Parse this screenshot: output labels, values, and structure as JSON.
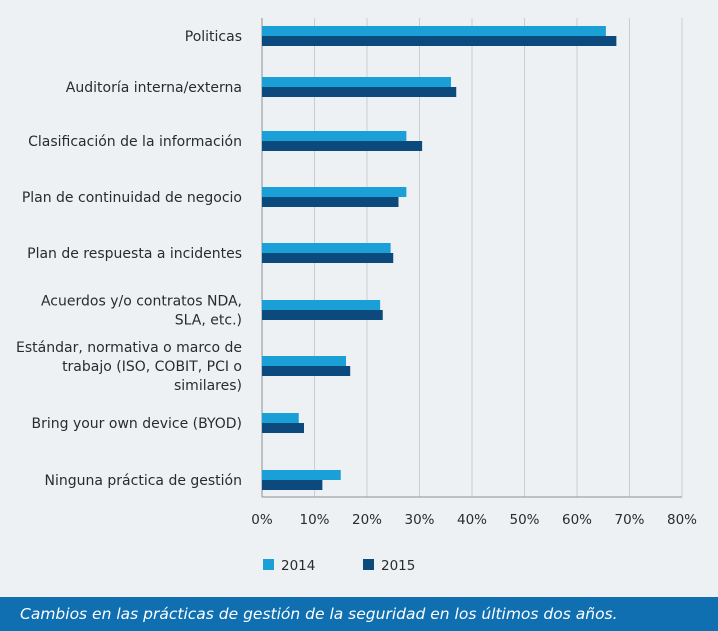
{
  "chart_data": {
    "type": "bar",
    "orientation": "horizontal",
    "categories": [
      [
        "Politicas"
      ],
      [
        "Auditoría interna/externa"
      ],
      [
        "Clasificación de la información"
      ],
      [
        "Plan de continuidad de negocio"
      ],
      [
        "Plan de respuesta a incidentes"
      ],
      [
        "Acuerdos y/o contratos NDA,",
        "SLA, etc.)"
      ],
      [
        "Estándar, normativa o marco de",
        "trabajo (ISO, COBIT, PCI o",
        "similares)"
      ],
      [
        "Bring your own device (BYOD)"
      ],
      [
        "Ninguna práctica de gestión"
      ]
    ],
    "series": [
      {
        "name": "2014",
        "color": "#1aa0d6",
        "values": [
          65.5,
          36,
          27.5,
          27.5,
          24.5,
          22.5,
          16,
          7,
          15
        ]
      },
      {
        "name": "2015",
        "color": "#0c4a7e",
        "values": [
          67.5,
          37,
          30.5,
          26,
          25,
          23,
          16.8,
          8,
          11.5
        ]
      }
    ],
    "xlim": [
      0,
      80
    ],
    "xticks": [
      "0%",
      "10%",
      "20%",
      "30%",
      "40%",
      "50%",
      "60%",
      "70%",
      "80%"
    ],
    "grid": true,
    "legend": "bottom-left"
  },
  "caption": "Cambios en las prácticas de gestión de la seguridad en los últimos dos años."
}
